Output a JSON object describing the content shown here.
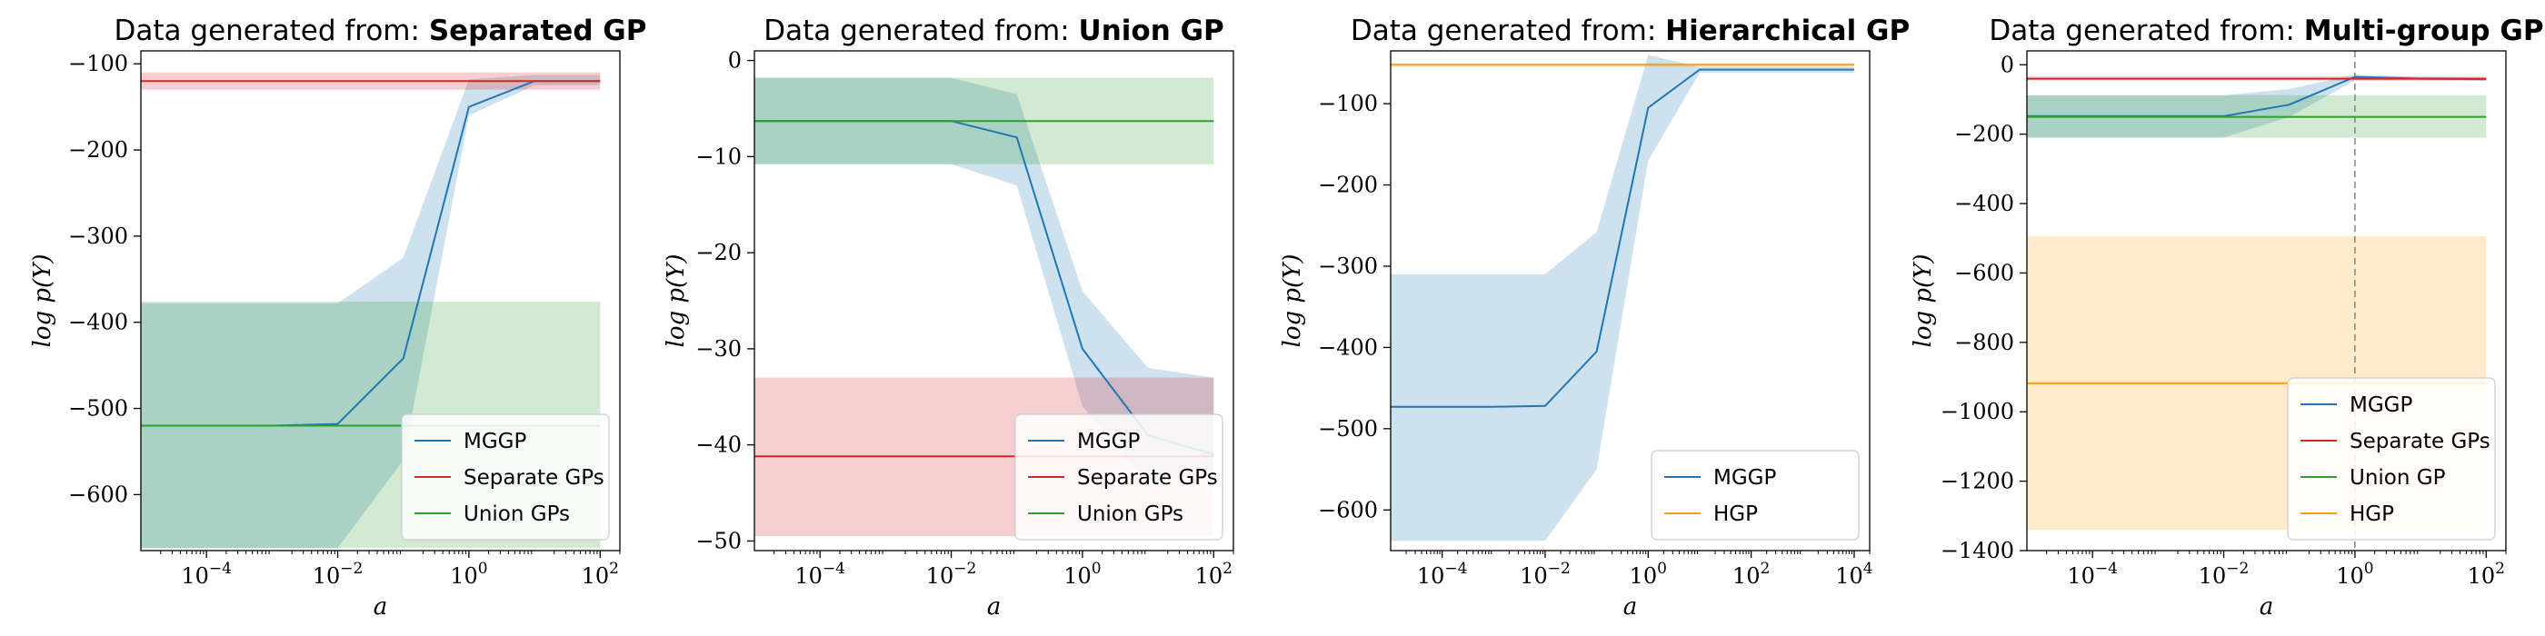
{
  "chart_data": [
    {
      "type": "line",
      "title_prefix": "Data generated from: ",
      "title_bold": "Separated GP",
      "xlabel": "a",
      "ylabel": "log p(Y)",
      "xscale": "log",
      "xlim": [
        1e-05,
        200
      ],
      "ylim": [
        -665,
        -85
      ],
      "xticks": [
        0.0001,
        0.01,
        1,
        100
      ],
      "xtick_labels": [
        "10^-4",
        "10^-2",
        "10^0",
        "10^2"
      ],
      "yticks": [
        -600,
        -500,
        -400,
        -300,
        -200,
        -100
      ],
      "ytick_labels": [
        "−600",
        "−500",
        "−400",
        "−300",
        "−200",
        "−100"
      ],
      "legend_position": "bottom-right",
      "series": [
        {
          "name": "MGGP",
          "color": "#1f77b4",
          "x": [
            1e-05,
            0.0001,
            0.001,
            0.01,
            0.1,
            1,
            10,
            100
          ],
          "y": [
            -520,
            -520,
            -520,
            -518,
            -442,
            -150,
            -120,
            -120
          ],
          "band_low": [
            -662,
            -662,
            -662,
            -662,
            -560,
            -160,
            -125,
            -125
          ],
          "band_high": [
            -378,
            -378,
            -378,
            -378,
            -325,
            -118,
            -113,
            -113
          ]
        },
        {
          "name": "Separate GPs",
          "color": "#d62728",
          "x": [
            1e-05,
            100
          ],
          "y": [
            -120,
            -120
          ],
          "band_low": [
            -130,
            -130
          ],
          "band_high": [
            -110,
            -110
          ]
        },
        {
          "name": "Union GPs",
          "color": "#2ca02c",
          "x": [
            1e-05,
            100
          ],
          "y": [
            -520,
            -520
          ],
          "band_low": [
            -662,
            -662
          ],
          "band_high": [
            -376,
            -376
          ]
        }
      ]
    },
    {
      "type": "line",
      "title_prefix": "Data generated from: ",
      "title_bold": "Union GP",
      "xlabel": "a",
      "ylabel": "log p(Y)",
      "xscale": "log",
      "xlim": [
        1e-05,
        200
      ],
      "ylim": [
        -51,
        1
      ],
      "xticks": [
        0.0001,
        0.01,
        1,
        100
      ],
      "xtick_labels": [
        "10^-4",
        "10^-2",
        "10^0",
        "10^2"
      ],
      "yticks": [
        -50,
        -40,
        -30,
        -20,
        -10,
        0
      ],
      "ytick_labels": [
        "−50",
        "−40",
        "−30",
        "−20",
        "−10",
        "0"
      ],
      "legend_position": "bottom-right",
      "series": [
        {
          "name": "MGGP",
          "color": "#1f77b4",
          "x": [
            1e-05,
            0.0001,
            0.001,
            0.01,
            0.1,
            1,
            10,
            100
          ],
          "y": [
            -6.3,
            -6.3,
            -6.3,
            -6.3,
            -8,
            -30,
            -39,
            -41
          ],
          "band_low": [
            -10.8,
            -10.8,
            -10.8,
            -10.8,
            -13,
            -36,
            -44,
            -43
          ],
          "band_high": [
            -1.8,
            -1.8,
            -1.8,
            -1.8,
            -3.5,
            -24,
            -32,
            -33
          ]
        },
        {
          "name": "Separate GPs",
          "color": "#d62728",
          "x": [
            1e-05,
            100
          ],
          "y": [
            -41.2,
            -41.2
          ],
          "band_low": [
            -49.5,
            -49.5
          ],
          "band_high": [
            -33,
            -33
          ]
        },
        {
          "name": "Union GPs",
          "color": "#2ca02c",
          "x": [
            1e-05,
            100
          ],
          "y": [
            -6.3,
            -6.3
          ],
          "band_low": [
            -10.8,
            -10.8
          ],
          "band_high": [
            -1.8,
            -1.8
          ]
        }
      ]
    },
    {
      "type": "line",
      "title_prefix": "Data generated from: ",
      "title_bold": "Hierarchical GP",
      "xlabel": "a",
      "ylabel": "log p(Y)",
      "xscale": "log",
      "xlim": [
        1e-05,
        20000
      ],
      "ylim": [
        -650,
        -35
      ],
      "xticks": [
        0.0001,
        0.01,
        1,
        100,
        10000
      ],
      "xtick_labels": [
        "10^-4",
        "10^-2",
        "10^0",
        "10^2",
        "10^4"
      ],
      "yticks": [
        -600,
        -500,
        -400,
        -300,
        -200,
        -100
      ],
      "ytick_labels": [
        "−600",
        "−500",
        "−400",
        "−300",
        "−200",
        "−100"
      ],
      "legend_position": "bottom-right",
      "series": [
        {
          "name": "MGGP",
          "color": "#1f77b4",
          "x": [
            1e-05,
            0.001,
            0.01,
            0.1,
            1,
            10,
            100,
            1000,
            10000
          ],
          "y": [
            -473,
            -473,
            -472,
            -405,
            -105,
            -58,
            -58,
            -58,
            -58
          ],
          "band_low": [
            -638,
            -638,
            -638,
            -550,
            -170,
            -62,
            -62,
            -62,
            -62
          ],
          "band_high": [
            -310,
            -310,
            -310,
            -258,
            -40,
            -55,
            -55,
            -55,
            -55
          ]
        },
        {
          "name": "HGP",
          "color": "#ff9f0e",
          "x": [
            1e-05,
            10000
          ],
          "y": [
            -52,
            -52
          ],
          "band_low": [
            -55,
            -55
          ],
          "band_high": [
            -50,
            -50
          ]
        }
      ]
    },
    {
      "type": "line",
      "title_prefix": "Data generated from: ",
      "title_bold": "Multi-group GP",
      "xlabel": "a",
      "ylabel": "log p(Y)",
      "xscale": "log",
      "xlim": [
        1e-05,
        200
      ],
      "ylim": [
        -1400,
        40
      ],
      "xticks": [
        0.0001,
        0.01,
        1,
        100
      ],
      "xtick_labels": [
        "10^-4",
        "10^-2",
        "10^0",
        "10^2"
      ],
      "yticks": [
        -1400,
        -1200,
        -1000,
        -800,
        -600,
        -400,
        -200,
        0
      ],
      "ytick_labels": [
        "−1400",
        "−1200",
        "−1000",
        "−800",
        "−600",
        "−400",
        "−200",
        "0"
      ],
      "vline_x": 1,
      "legend_position": "bottom-right",
      "series": [
        {
          "name": "MGGP",
          "color": "#1f77b4",
          "x": [
            1e-05,
            0.001,
            0.01,
            0.1,
            1,
            10,
            100
          ],
          "y": [
            -148,
            -148,
            -148,
            -115,
            -35,
            -40,
            -42
          ],
          "band_low": [
            -210,
            -210,
            -210,
            -150,
            -45,
            -45,
            -45
          ],
          "band_high": [
            -88,
            -88,
            -88,
            -70,
            -28,
            -35,
            -38
          ]
        },
        {
          "name": "Separate GPs",
          "color": "#d62728",
          "x": [
            1e-05,
            100
          ],
          "y": [
            -40,
            -40
          ],
          "band_low": [
            -46,
            -46
          ],
          "band_high": [
            -34,
            -34
          ]
        },
        {
          "name": "Union GP",
          "color": "#2ca02c",
          "x": [
            1e-05,
            100
          ],
          "y": [
            -150,
            -150
          ],
          "band_low": [
            -210,
            -210
          ],
          "band_high": [
            -88,
            -88
          ]
        },
        {
          "name": "HGP",
          "color": "#ff9f0e",
          "x": [
            1e-05,
            100
          ],
          "y": [
            -918,
            -918
          ],
          "band_low": [
            -1340,
            -1340
          ],
          "band_high": [
            -495,
            -495
          ]
        }
      ]
    }
  ]
}
